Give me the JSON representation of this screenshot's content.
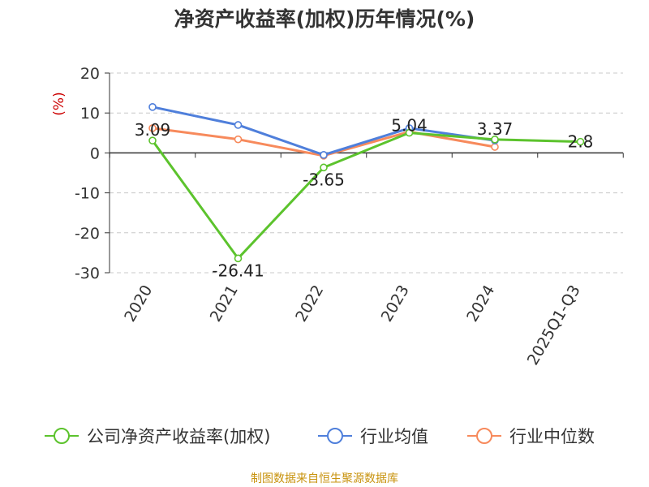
{
  "chart_data": {
    "type": "line",
    "title": "净资产收益率(加权)历年情况(%)",
    "ylabel": "(%)",
    "ylim": [
      -30,
      20
    ],
    "yticks": [
      20,
      10,
      0,
      -10,
      -20,
      -30
    ],
    "grid": true,
    "legend_position": "bottom",
    "categories": [
      "2020",
      "2021",
      "2022",
      "2023",
      "2024",
      "2025Q1-Q3"
    ],
    "series": [
      {
        "name": "公司净资产收益率(加权)",
        "color": "#5cc32d",
        "values": [
          3.09,
          -26.41,
          -3.65,
          5.04,
          3.37,
          2.8
        ],
        "labels": [
          "3.09",
          "-26.41",
          "-3.65",
          "5.04",
          "3.37",
          "2.8"
        ]
      },
      {
        "name": "行业均值",
        "color": "#4f7fdb",
        "values": [
          11.5,
          7.0,
          -0.5,
          6.2,
          3.1,
          null
        ]
      },
      {
        "name": "行业中位数",
        "color": "#f78a5c",
        "values": [
          6.2,
          3.4,
          -0.7,
          5.3,
          1.5,
          null
        ]
      }
    ]
  },
  "footer": {
    "source": "制图数据来自恒生聚源数据库"
  }
}
